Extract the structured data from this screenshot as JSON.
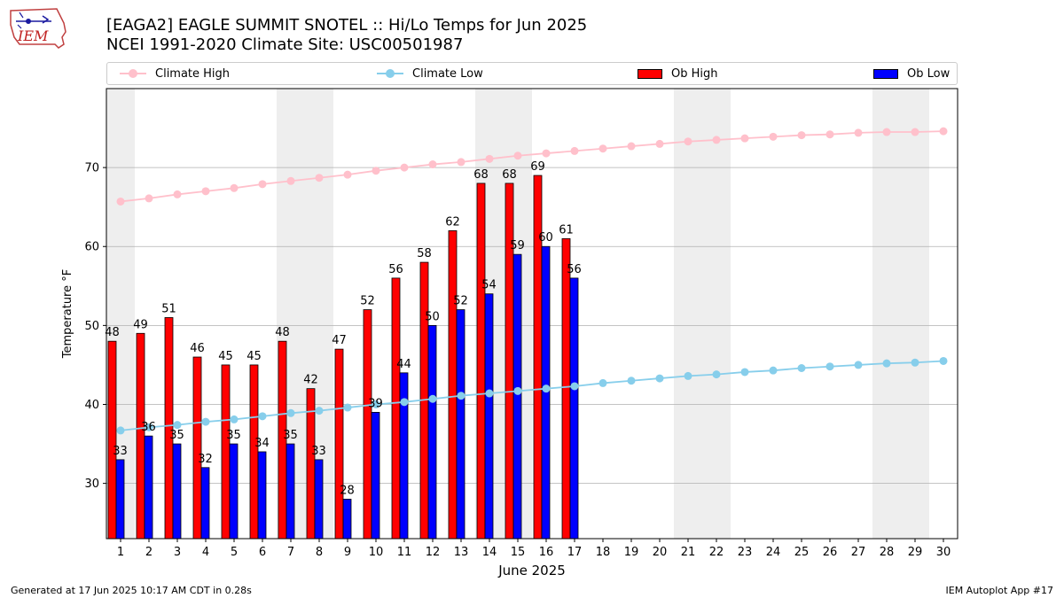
{
  "header": {
    "title_line1": "[EAGA2] EAGLE SUMMIT SNOTEL :: Hi/Lo Temps for Jun 2025",
    "title_line2": "NCEI 1991-2020 Climate Site: USC00501987",
    "logo_text": "IEM"
  },
  "footer": {
    "generated": "Generated at 17 Jun 2025 10:17 AM CDT in 0.28s",
    "app": "IEM Autoplot App #17"
  },
  "colors": {
    "ob_high": "#ff0000",
    "ob_low": "#0000ff",
    "climate_high": "#ffc0cb",
    "climate_low": "#87ceeb",
    "weekend_shading": "#eeeeee",
    "grid": "#b0b0b0"
  },
  "chart_data": {
    "type": "bar",
    "xlabel": "June 2025",
    "ylabel": "Temperature °F",
    "ylim": [
      23,
      80
    ],
    "yticks": [
      30,
      40,
      50,
      60,
      70
    ],
    "grid": "horizontal",
    "legend_position": "top",
    "days": [
      1,
      2,
      3,
      4,
      5,
      6,
      7,
      8,
      9,
      10,
      11,
      12,
      13,
      14,
      15,
      16,
      17,
      18,
      19,
      20,
      21,
      22,
      23,
      24,
      25,
      26,
      27,
      28,
      29,
      30
    ],
    "shaded_days": [
      1,
      7,
      8,
      14,
      15,
      21,
      22,
      28,
      29
    ],
    "series": [
      {
        "name": "Climate High",
        "kind": "line",
        "values": [
          65.7,
          66.1,
          66.6,
          67.0,
          67.4,
          67.9,
          68.3,
          68.7,
          69.1,
          69.6,
          70.0,
          70.4,
          70.7,
          71.1,
          71.5,
          71.8,
          72.1,
          72.4,
          72.7,
          73.0,
          73.3,
          73.5,
          73.7,
          73.9,
          74.1,
          74.2,
          74.4,
          74.5,
          74.5,
          74.6
        ]
      },
      {
        "name": "Climate Low",
        "kind": "line",
        "values": [
          36.7,
          37.1,
          37.4,
          37.8,
          38.1,
          38.5,
          38.9,
          39.2,
          39.6,
          40.0,
          40.3,
          40.7,
          41.1,
          41.4,
          41.7,
          42.0,
          42.3,
          42.7,
          43.0,
          43.3,
          43.6,
          43.8,
          44.1,
          44.3,
          44.6,
          44.8,
          45.0,
          45.2,
          45.3,
          45.5
        ]
      },
      {
        "name": "Ob High",
        "kind": "bar",
        "values": [
          48,
          49,
          51,
          46,
          45,
          45,
          48,
          42,
          47,
          52,
          56,
          58,
          62,
          68,
          68,
          69,
          61
        ]
      },
      {
        "name": "Ob Low",
        "kind": "bar",
        "values": [
          33,
          36,
          35,
          32,
          35,
          34,
          35,
          33,
          28,
          39,
          44,
          50,
          52,
          54,
          59,
          60,
          56
        ]
      }
    ]
  }
}
